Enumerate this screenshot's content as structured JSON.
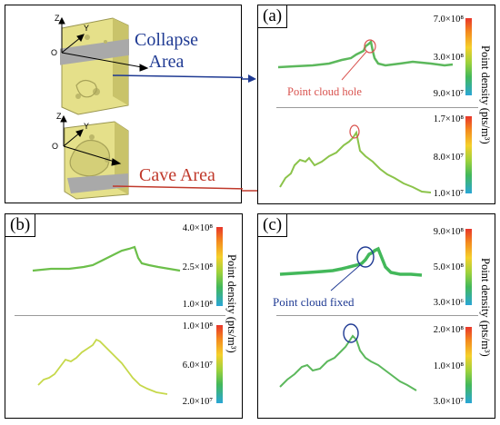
{
  "overview": {
    "axis_z": "Z",
    "axis_y": "Y",
    "axis_o": "O",
    "collapse_label": "Collapse\nArea",
    "cave_label": "Cave Area"
  },
  "panel_a": {
    "label": "(a)",
    "annotation": "Point cloud hole",
    "top_scale": [
      "7.0×10⁸",
      "3.0×10⁸",
      "9.0×10⁷"
    ],
    "bottom_scale": [
      "1.7×10⁸",
      "8.0×10⁷",
      "1.0×10⁷"
    ],
    "axis_title": "Point density (pts/m³)"
  },
  "panel_b": {
    "label": "(b)",
    "top_scale": [
      "4.0×10⁸",
      "2.5×10⁸",
      "1.0×10⁸"
    ],
    "bottom_scale": [
      "1.0×10⁸",
      "6.0×10⁷",
      "2.0×10⁷"
    ],
    "axis_title": "Point density (pts/m³)"
  },
  "panel_c": {
    "label": "(c)",
    "annotation": "Point cloud fixed",
    "top_scale": [
      "9.0×10⁸",
      "5.0×10⁸",
      "3.0×10⁶"
    ],
    "bottom_scale": [
      "2.0×10⁸",
      "1.0×10⁸",
      "3.0×10⁷"
    ],
    "axis_title": "Point density (pts/m³)"
  },
  "colors": {
    "accent_blue": "#1f3a93",
    "accent_red": "#c0392b",
    "annotation_red": "#d9534f"
  }
}
